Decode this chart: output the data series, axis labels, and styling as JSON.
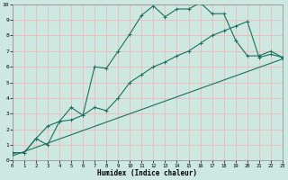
{
  "xlabel": "Humidex (Indice chaleur)",
  "bg_color": "#cce8e0",
  "grid_color": "#f0b8b8",
  "line_color": "#1a7060",
  "xlim": [
    0,
    23
  ],
  "ylim": [
    0,
    10
  ],
  "xticks": [
    0,
    1,
    2,
    3,
    4,
    5,
    6,
    7,
    8,
    9,
    10,
    11,
    12,
    13,
    14,
    15,
    16,
    17,
    18,
    19,
    20,
    21,
    22,
    23
  ],
  "yticks": [
    0,
    1,
    2,
    3,
    4,
    5,
    6,
    7,
    8,
    9,
    10
  ],
  "line1_x": [
    0,
    1,
    2,
    3,
    4,
    5,
    6,
    7,
    8,
    9,
    10,
    11,
    12,
    13,
    14,
    15,
    16,
    17,
    18,
    19,
    20,
    21,
    22,
    23
  ],
  "line1_y": [
    0.5,
    0.5,
    1.4,
    1.0,
    2.5,
    2.6,
    2.9,
    6.0,
    5.9,
    7.0,
    8.1,
    9.3,
    9.9,
    9.2,
    9.7,
    9.7,
    10.1,
    9.4,
    9.4,
    7.7,
    6.7,
    6.7,
    7.0,
    6.6
  ],
  "line2_x": [
    0,
    1,
    2,
    3,
    4,
    5,
    6,
    7,
    8,
    9,
    10,
    11,
    12,
    13,
    14,
    15,
    16,
    17,
    18,
    19,
    20,
    21,
    22,
    23
  ],
  "line2_y": [
    0.5,
    0.5,
    1.4,
    2.2,
    2.5,
    3.4,
    2.9,
    3.4,
    3.2,
    4.0,
    5.0,
    5.5,
    6.0,
    6.3,
    6.7,
    7.0,
    7.5,
    8.0,
    8.3,
    8.6,
    8.9,
    6.6,
    6.8,
    6.6
  ],
  "line3_x": [
    0,
    23
  ],
  "line3_y": [
    0.3,
    6.5
  ]
}
